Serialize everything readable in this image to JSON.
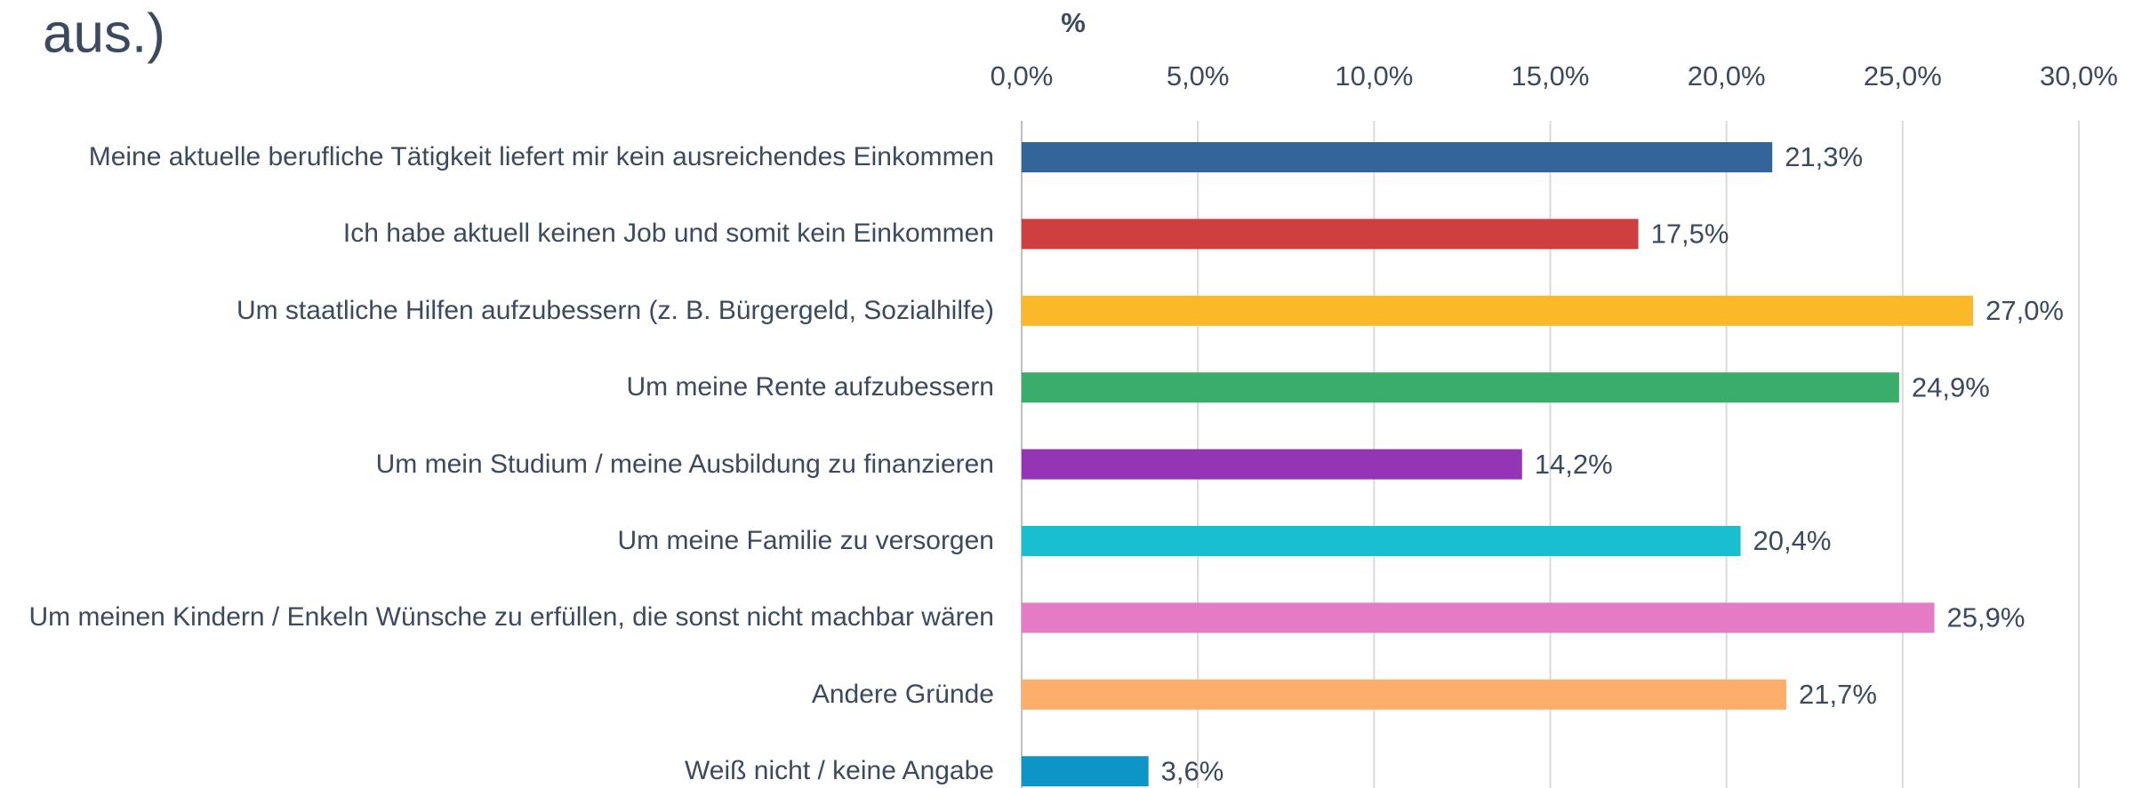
{
  "chart_data": {
    "type": "bar",
    "orientation": "horizontal",
    "title": "aus.)",
    "xlabel": "%",
    "categories": [
      "Meine aktuelle berufliche Tätigkeit liefert mir kein ausreichendes Einkommen",
      "Ich habe aktuell keinen Job und somit kein Einkommen",
      "Um staatliche Hilfen aufzubessern (z. B. Bürgergeld, Sozialhilfe)",
      "Um meine Rente aufzubessern",
      "Um mein Studium / meine Ausbildung zu finanzieren",
      "Um meine Familie zu versorgen",
      "Um meinen Kindern / Enkeln Wünsche zu erfüllen, die sonst nicht machbar wären",
      "Andere Gründe",
      "Weiß nicht / keine Angabe"
    ],
    "values": [
      21.3,
      17.5,
      27.0,
      24.9,
      14.2,
      20.4,
      25.9,
      21.7,
      3.6
    ],
    "value_labels": [
      "21,3%",
      "17,5%",
      "27,0%",
      "24,9%",
      "14,2%",
      "20,4%",
      "25,9%",
      "21,7%",
      "3,6%"
    ],
    "colors": [
      "#34659a",
      "#d03f3f",
      "#fbb829",
      "#3aad6a",
      "#9335b4",
      "#19bfd1",
      "#e57ac5",
      "#fdae6b",
      "#0e95c8"
    ],
    "xlim": [
      0,
      30
    ],
    "xticks": [
      {
        "value": 0,
        "label": "0,0%"
      },
      {
        "value": 5,
        "label": "5,0%"
      },
      {
        "value": 10,
        "label": "10,0%"
      },
      {
        "value": 15,
        "label": "15,0%"
      },
      {
        "value": 20,
        "label": "20,0%"
      },
      {
        "value": 25,
        "label": "25,0%"
      },
      {
        "value": 30,
        "label": "30,0%"
      }
    ],
    "grid": true
  }
}
